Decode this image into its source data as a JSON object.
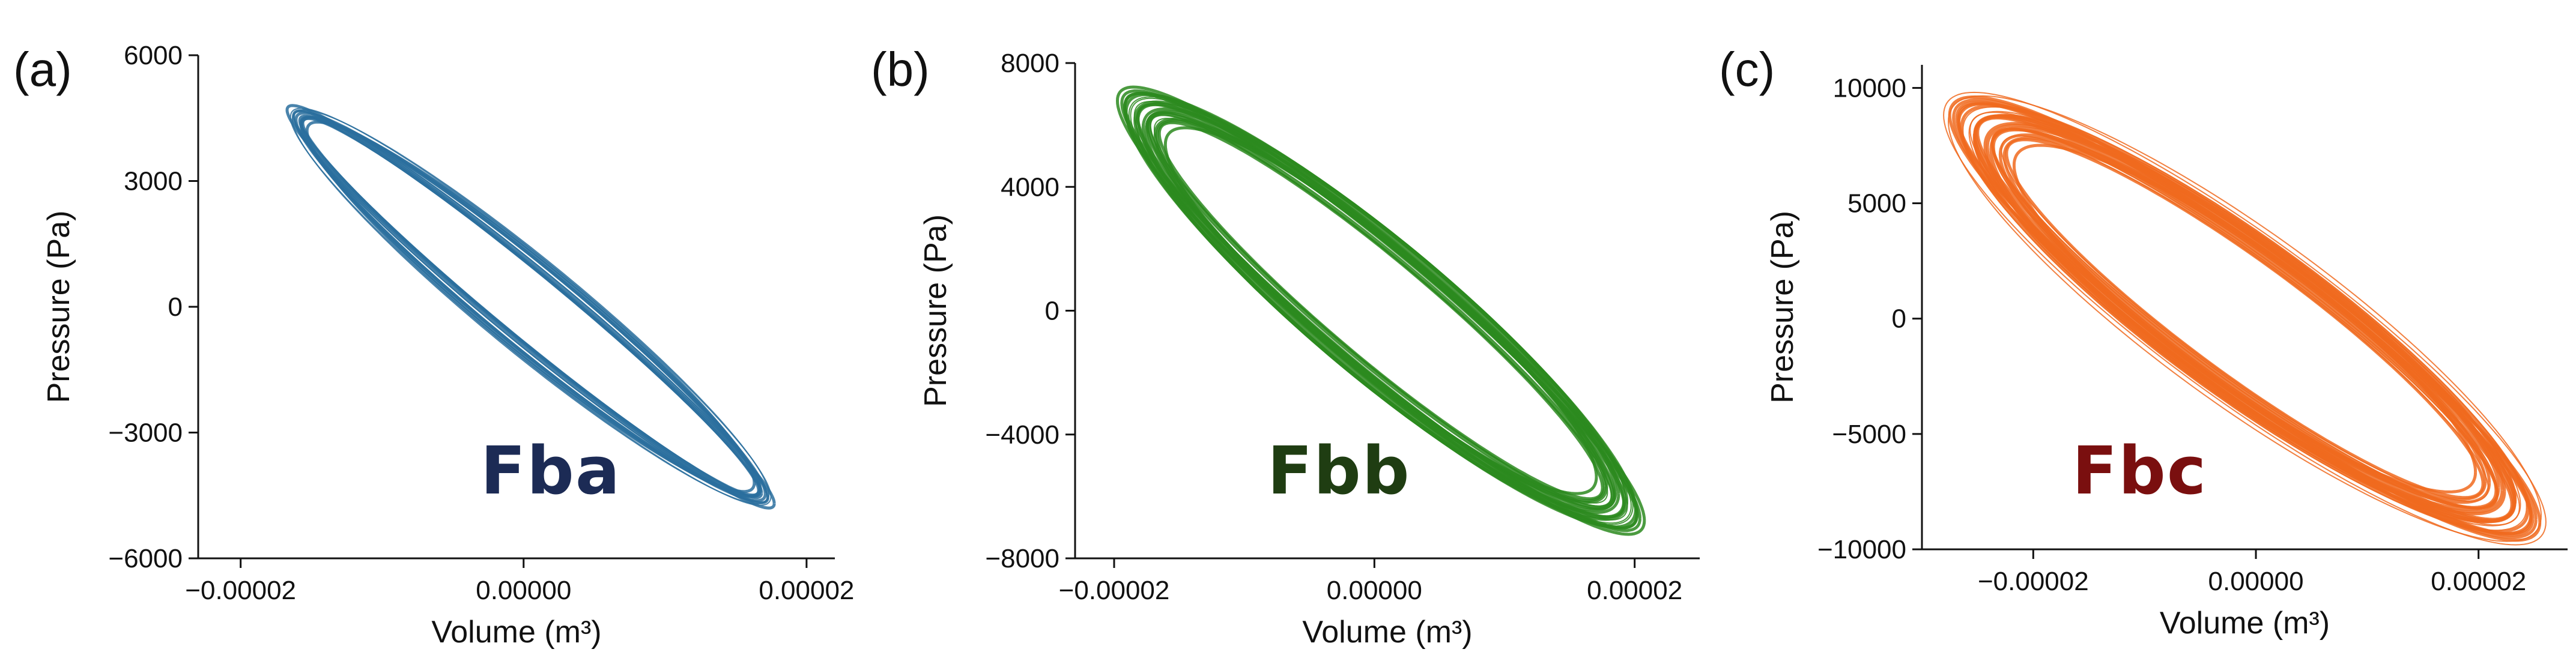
{
  "chart_data": [
    {
      "type": "line",
      "panel_label": "(a)",
      "inset_label": "Fba",
      "inset_color": "#1c2b55",
      "series_color": "#2a6f9e",
      "xlabel": "Volume (m³)",
      "ylabel": "Pressure (Pa)",
      "xlim": [
        -2.3e-05,
        2.2e-05
      ],
      "ylim": [
        -6000,
        6000
      ],
      "xticks": [
        -2e-05,
        0.0,
        2e-05
      ],
      "xtick_labels": [
        "−0.00002",
        "0.00000",
        "0.00002"
      ],
      "yticks": [
        -6000,
        -3000,
        0,
        3000,
        6000
      ],
      "ytick_labels": [
        "−6000",
        "−3000",
        "0",
        "3000",
        "6000"
      ],
      "loop": {
        "center": [
          5e-07,
          0
        ],
        "x_amplitude": 1.65e-05,
        "y_amplitude": 4600,
        "phase_lag_deg": 165,
        "thickness": 0.06,
        "cycles": 12
      }
    },
    {
      "type": "line",
      "panel_label": "(b)",
      "inset_label": "Fbb",
      "inset_color": "#1f3d12",
      "series_color": "#2b8a1f",
      "xlabel": "Volume (m³)",
      "ylabel": "Pressure (Pa)",
      "xlim": [
        -2.3e-05,
        2.5e-05
      ],
      "ylim": [
        -8000,
        8000
      ],
      "xticks": [
        -2e-05,
        0.0,
        2e-05
      ],
      "xtick_labels": [
        "−0.00002",
        "0.00000",
        "0.00002"
      ],
      "yticks": [
        -8000,
        -4000,
        0,
        4000,
        8000
      ],
      "ytick_labels": [
        "−8000",
        "−4000",
        "0",
        "4000",
        "8000"
      ],
      "loop": {
        "center": [
          5e-07,
          0
        ],
        "x_amplitude": 1.85e-05,
        "y_amplitude": 6600,
        "phase_lag_deg": 158,
        "thickness": 0.14,
        "cycles": 24
      }
    },
    {
      "type": "line",
      "panel_label": "(c)",
      "inset_label": "Fbc",
      "inset_color": "#7a0f0f",
      "series_color": "#f06a1e",
      "xlabel": "Volume (m³)",
      "ylabel": "Pressure (Pa)",
      "xlim": [
        -3e-05,
        2.8e-05
      ],
      "ylim": [
        -10000,
        11000
      ],
      "xticks": [
        -2e-05,
        0.0,
        2e-05
      ],
      "xtick_labels": [
        "−0.00002",
        "0.00000",
        "0.00002"
      ],
      "yticks": [
        -10000,
        -5000,
        0,
        5000,
        10000
      ],
      "ytick_labels": [
        "−10000",
        "−5000",
        "0",
        "5000",
        "10000"
      ],
      "loop": {
        "center": [
          -1e-06,
          0
        ],
        "x_amplitude": 2.4e-05,
        "y_amplitude": 8700,
        "phase_lag_deg": 155,
        "thickness": 0.18,
        "cycles": 30
      }
    }
  ]
}
